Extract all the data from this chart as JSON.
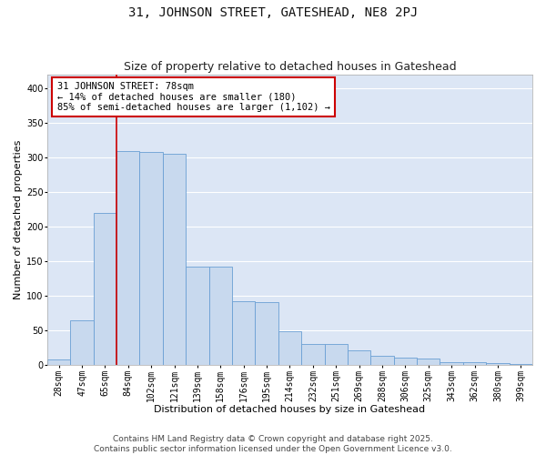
{
  "title_line1": "31, JOHNSON STREET, GATESHEAD, NE8 2PJ",
  "title_line2": "Size of property relative to detached houses in Gateshead",
  "xlabel": "Distribution of detached houses by size in Gateshead",
  "ylabel": "Number of detached properties",
  "bar_color": "#c8d9ee",
  "bar_edge_color": "#6a9fd4",
  "background_color": "#dce6f5",
  "vline_color": "#cc0000",
  "categories": [
    "28sqm",
    "47sqm",
    "65sqm",
    "84sqm",
    "102sqm",
    "121sqm",
    "139sqm",
    "158sqm",
    "176sqm",
    "195sqm",
    "214sqm",
    "232sqm",
    "251sqm",
    "269sqm",
    "288sqm",
    "306sqm",
    "325sqm",
    "343sqm",
    "362sqm",
    "380sqm",
    "399sqm"
  ],
  "values": [
    9,
    65,
    220,
    310,
    308,
    305,
    143,
    143,
    92,
    91,
    49,
    31,
    31,
    21,
    14,
    11,
    10,
    5,
    5,
    3,
    2
  ],
  "ylim": [
    0,
    420
  ],
  "yticks": [
    0,
    50,
    100,
    150,
    200,
    250,
    300,
    350,
    400
  ],
  "vline_pos": 2.5,
  "annotation_text": "31 JOHNSON STREET: 78sqm\n← 14% of detached houses are smaller (180)\n85% of semi-detached houses are larger (1,102) →",
  "annotation_box_color": "#ffffff",
  "annotation_box_edge": "#cc0000",
  "footer_line1": "Contains HM Land Registry data © Crown copyright and database right 2025.",
  "footer_line2": "Contains public sector information licensed under the Open Government Licence v3.0.",
  "grid_color": "#ffffff",
  "title_fontsize": 10,
  "subtitle_fontsize": 9,
  "axis_label_fontsize": 8,
  "tick_fontsize": 7,
  "annotation_fontsize": 7.5,
  "footer_fontsize": 6.5
}
